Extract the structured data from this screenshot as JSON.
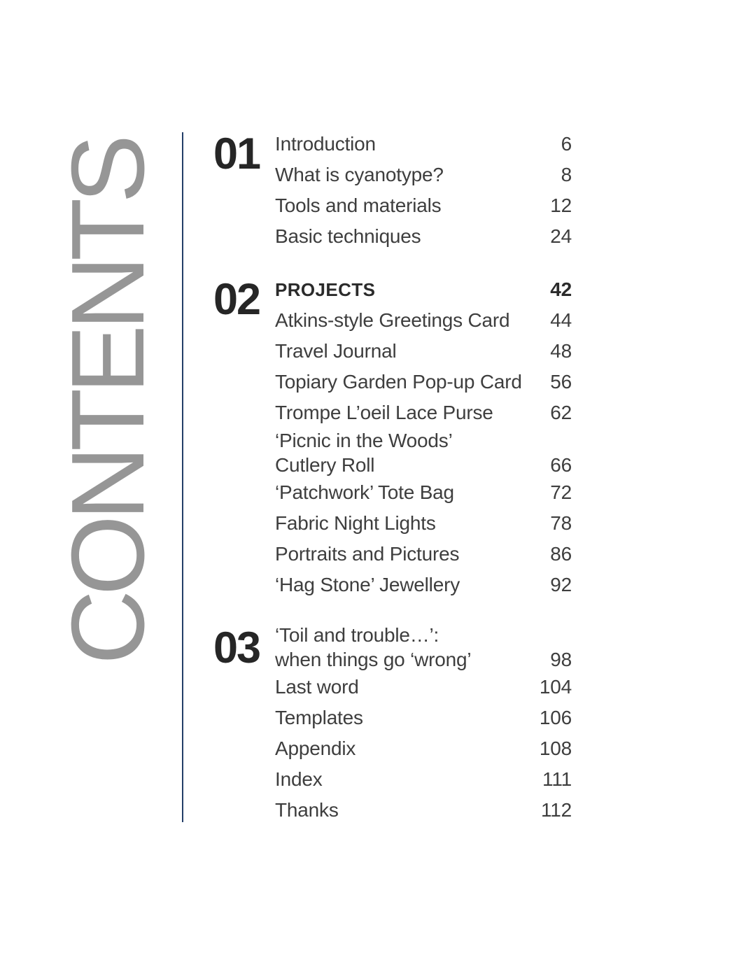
{
  "vertical_title": {
    "text": "CONTENTS"
  },
  "colors": {
    "title_gray": "#969696",
    "divider_navy": "#233e68",
    "entry_text": "#3e3e3e",
    "emphasis_text": "#2b2b2b",
    "section_number": "#262626"
  },
  "toc": {
    "sections": [
      {
        "number": "01",
        "items": [
          {
            "lines": [
              "Introduction"
            ],
            "page": "6",
            "emphasis": false
          },
          {
            "lines": [
              "What is cyanotype?"
            ],
            "page": "8",
            "emphasis": false
          },
          {
            "lines": [
              "Tools and materials"
            ],
            "page": "12",
            "emphasis": false
          },
          {
            "lines": [
              "Basic techniques"
            ],
            "page": "24",
            "emphasis": false
          }
        ]
      },
      {
        "number": "02",
        "items": [
          {
            "lines": [
              "PROJECTS"
            ],
            "page": "42",
            "emphasis": true
          },
          {
            "lines": [
              "Atkins-style Greetings Card"
            ],
            "page": "44",
            "emphasis": false
          },
          {
            "lines": [
              "Travel Journal"
            ],
            "page": "48",
            "emphasis": false
          },
          {
            "lines": [
              "Topiary Garden Pop-up Card"
            ],
            "page": "56",
            "emphasis": false
          },
          {
            "lines": [
              "Trompe L’oeil Lace Purse"
            ],
            "page": "62",
            "emphasis": false
          },
          {
            "lines": [
              "‘Picnic in the Woods’",
              "Cutlery Roll"
            ],
            "page": "66",
            "emphasis": false
          },
          {
            "lines": [
              "‘Patchwork’ Tote Bag"
            ],
            "page": "72",
            "emphasis": false
          },
          {
            "lines": [
              "Fabric Night Lights"
            ],
            "page": "78",
            "emphasis": false
          },
          {
            "lines": [
              "Portraits and Pictures"
            ],
            "page": "86",
            "emphasis": false
          },
          {
            "lines": [
              "‘Hag Stone’ Jewellery"
            ],
            "page": "92",
            "emphasis": false
          }
        ]
      },
      {
        "number": "03",
        "items": [
          {
            "lines": [
              "‘Toil and trouble…’:",
              "when things go ‘wrong’"
            ],
            "page": "98",
            "emphasis": false
          },
          {
            "lines": [
              "Last word"
            ],
            "page": "104",
            "emphasis": false
          },
          {
            "lines": [
              "Templates"
            ],
            "page": "106",
            "emphasis": false
          },
          {
            "lines": [
              "Appendix"
            ],
            "page": "108",
            "emphasis": false
          },
          {
            "lines": [
              "Index"
            ],
            "page": "111",
            "emphasis": false
          },
          {
            "lines": [
              "Thanks"
            ],
            "page": "112",
            "emphasis": false
          }
        ]
      }
    ]
  }
}
